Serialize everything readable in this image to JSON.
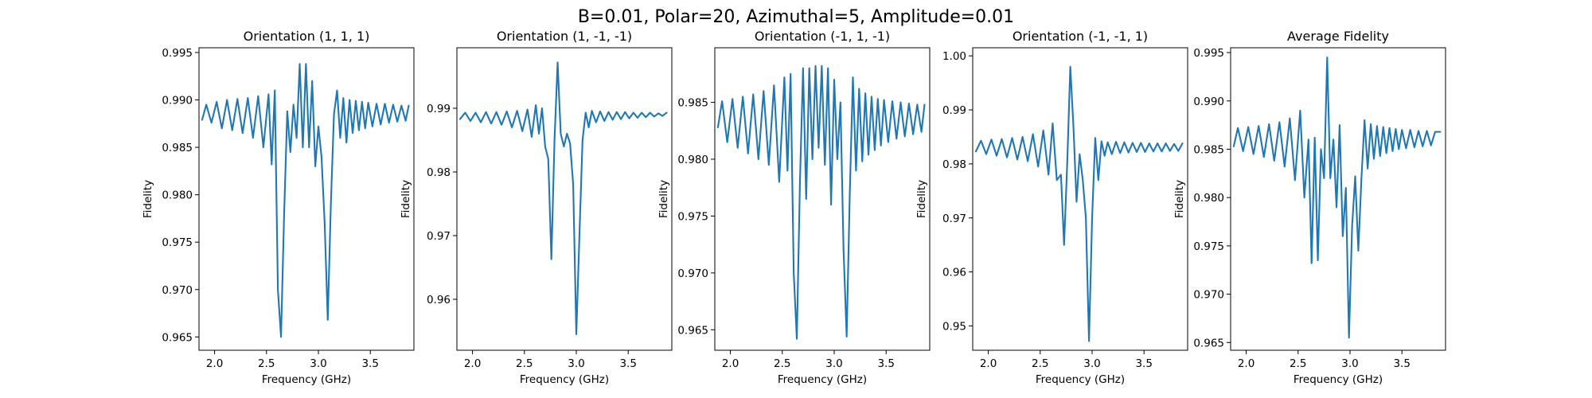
{
  "suptitle": "B=0.01, Polar=20, Azimuthal=5, Amplitude=0.01",
  "colors": {
    "line": "#1f77b4",
    "axes": "#000000",
    "background": "#ffffff"
  },
  "chart_data": [
    {
      "type": "line",
      "title": "Orientation (1, 1, 1)",
      "xlabel": "Frequency (GHz)",
      "ylabel": "Fidelity",
      "xlim": [
        1.85,
        3.92
      ],
      "ylim": [
        0.9636,
        0.9955
      ],
      "xticks": [
        2.0,
        2.5,
        3.0,
        3.5
      ],
      "xtick_labels": [
        "2.0",
        "2.5",
        "3.0",
        "3.5"
      ],
      "yticks": [
        0.965,
        0.97,
        0.975,
        0.98,
        0.985,
        0.99,
        0.995
      ],
      "ytick_labels": [
        "0.965",
        "0.970",
        "0.975",
        "0.980",
        "0.985",
        "0.990",
        "0.995"
      ],
      "grid": false,
      "series": [
        {
          "x": [
            1.88,
            1.92,
            1.97,
            2.02,
            2.07,
            2.12,
            2.17,
            2.22,
            2.27,
            2.32,
            2.37,
            2.42,
            2.47,
            2.52,
            2.55,
            2.58,
            2.61,
            2.64,
            2.67,
            2.7,
            2.73,
            2.76,
            2.79,
            2.82,
            2.85,
            2.88,
            2.91,
            2.94,
            2.97,
            3.0,
            3.03,
            3.06,
            3.09,
            3.12,
            3.15,
            3.18,
            3.21,
            3.24,
            3.27,
            3.3,
            3.33,
            3.36,
            3.39,
            3.42,
            3.45,
            3.48,
            3.52,
            3.56,
            3.6,
            3.64,
            3.68,
            3.72,
            3.76,
            3.8,
            3.84,
            3.87
          ],
          "y": [
            0.9879,
            0.9895,
            0.9876,
            0.9898,
            0.987,
            0.99,
            0.9868,
            0.9901,
            0.9865,
            0.9902,
            0.986,
            0.9904,
            0.985,
            0.9906,
            0.9832,
            0.991,
            0.97,
            0.965,
            0.978,
            0.9888,
            0.9845,
            0.9895,
            0.986,
            0.9938,
            0.985,
            0.9938,
            0.985,
            0.992,
            0.983,
            0.9872,
            0.984,
            0.9771,
            0.9668,
            0.979,
            0.9885,
            0.991,
            0.986,
            0.9902,
            0.9855,
            0.99,
            0.9865,
            0.9899,
            0.9868,
            0.9898,
            0.987,
            0.9897,
            0.9872,
            0.9896,
            0.9874,
            0.9896,
            0.9876,
            0.9895,
            0.9877,
            0.9894,
            0.9878,
            0.9894
          ]
        }
      ]
    },
    {
      "type": "line",
      "title": "Orientation (1, -1, -1)",
      "xlabel": "Frequency (GHz)",
      "ylabel": "Fidelity",
      "xlim": [
        1.85,
        3.92
      ],
      "ylim": [
        0.952,
        0.9995
      ],
      "xticks": [
        2.0,
        2.5,
        3.0,
        3.5
      ],
      "xtick_labels": [
        "2.0",
        "2.5",
        "3.0",
        "3.5"
      ],
      "yticks": [
        0.96,
        0.97,
        0.98,
        0.99
      ],
      "ytick_labels": [
        "0.96",
        "0.97",
        "0.98",
        "0.99"
      ],
      "grid": false,
      "series": [
        {
          "x": [
            1.88,
            1.93,
            1.98,
            2.03,
            2.08,
            2.13,
            2.18,
            2.23,
            2.28,
            2.33,
            2.38,
            2.43,
            2.48,
            2.53,
            2.57,
            2.61,
            2.64,
            2.67,
            2.7,
            2.73,
            2.76,
            2.79,
            2.82,
            2.85,
            2.88,
            2.91,
            2.94,
            2.97,
            3.0,
            3.03,
            3.06,
            3.09,
            3.12,
            3.15,
            3.19,
            3.23,
            3.27,
            3.31,
            3.35,
            3.39,
            3.43,
            3.47,
            3.51,
            3.55,
            3.59,
            3.63,
            3.67,
            3.71,
            3.75,
            3.79,
            3.83,
            3.87
          ],
          "y": [
            0.9883,
            0.9893,
            0.988,
            0.9893,
            0.9878,
            0.9894,
            0.9876,
            0.9894,
            0.9874,
            0.9895,
            0.987,
            0.9896,
            0.9864,
            0.9898,
            0.9855,
            0.9905,
            0.986,
            0.99,
            0.984,
            0.982,
            0.9663,
            0.985,
            0.9972,
            0.986,
            0.984,
            0.986,
            0.9845,
            0.978,
            0.9545,
            0.97,
            0.985,
            0.9893,
            0.987,
            0.9896,
            0.9878,
            0.9895,
            0.988,
            0.9894,
            0.9882,
            0.9894,
            0.9883,
            0.9894,
            0.9884,
            0.9893,
            0.9885,
            0.9893,
            0.9886,
            0.9893,
            0.9887,
            0.9892,
            0.9888,
            0.9893
          ]
        }
      ]
    },
    {
      "type": "line",
      "title": "Orientation (-1, 1, -1)",
      "xlabel": "Frequency (GHz)",
      "ylabel": "Fidelity",
      "xlim": [
        1.85,
        3.92
      ],
      "ylim": [
        0.9632,
        0.9898
      ],
      "xticks": [
        2.0,
        2.5,
        3.0,
        3.5
      ],
      "xtick_labels": [
        "2.0",
        "2.5",
        "3.0",
        "3.5"
      ],
      "yticks": [
        0.965,
        0.97,
        0.975,
        0.98,
        0.985
      ],
      "ytick_labels": [
        "0.965",
        "0.970",
        "0.975",
        "0.980",
        "0.985"
      ],
      "grid": false,
      "series": [
        {
          "x": [
            1.88,
            1.92,
            1.97,
            2.02,
            2.07,
            2.12,
            2.17,
            2.22,
            2.27,
            2.32,
            2.37,
            2.42,
            2.47,
            2.52,
            2.55,
            2.58,
            2.61,
            2.64,
            2.67,
            2.7,
            2.73,
            2.76,
            2.79,
            2.82,
            2.85,
            2.88,
            2.91,
            2.94,
            2.97,
            3.0,
            3.03,
            3.06,
            3.09,
            3.12,
            3.15,
            3.18,
            3.21,
            3.24,
            3.27,
            3.3,
            3.33,
            3.36,
            3.39,
            3.42,
            3.45,
            3.48,
            3.52,
            3.56,
            3.6,
            3.64,
            3.68,
            3.72,
            3.76,
            3.8,
            3.84,
            3.87
          ],
          "y": [
            0.9828,
            0.9851,
            0.9815,
            0.9853,
            0.981,
            0.9855,
            0.9805,
            0.9857,
            0.98,
            0.986,
            0.9795,
            0.9865,
            0.978,
            0.9872,
            0.979,
            0.9875,
            0.97,
            0.9642,
            0.978,
            0.988,
            0.9765,
            0.988,
            0.98,
            0.9882,
            0.981,
            0.9882,
            0.9795,
            0.988,
            0.976,
            0.987,
            0.98,
            0.985,
            0.972,
            0.9644,
            0.977,
            0.9872,
            0.979,
            0.9862,
            0.9798,
            0.9858,
            0.9804,
            0.9855,
            0.9808,
            0.9853,
            0.9812,
            0.9852,
            0.9815,
            0.9851,
            0.9818,
            0.985,
            0.982,
            0.9849,
            0.9822,
            0.9848,
            0.9824,
            0.9848
          ]
        }
      ]
    },
    {
      "type": "line",
      "title": "Orientation (-1, -1, 1)",
      "xlabel": "Frequency (GHz)",
      "ylabel": "Fidelity",
      "xlim": [
        1.85,
        3.92
      ],
      "ylim": [
        0.9455,
        1.0015
      ],
      "xticks": [
        2.0,
        2.5,
        3.0,
        3.5
      ],
      "xtick_labels": [
        "2.0",
        "2.5",
        "3.0",
        "3.5"
      ],
      "yticks": [
        0.95,
        0.96,
        0.97,
        0.98,
        0.99,
        1.0
      ],
      "ytick_labels": [
        "0.95",
        "0.96",
        "0.97",
        "0.98",
        "0.99",
        "1.00"
      ],
      "grid": false,
      "series": [
        {
          "x": [
            1.88,
            1.93,
            1.98,
            2.03,
            2.08,
            2.13,
            2.18,
            2.23,
            2.28,
            2.33,
            2.38,
            2.43,
            2.48,
            2.53,
            2.58,
            2.62,
            2.66,
            2.7,
            2.73,
            2.76,
            2.79,
            2.82,
            2.85,
            2.88,
            2.91,
            2.94,
            2.97,
            3.0,
            3.03,
            3.06,
            3.09,
            3.12,
            3.15,
            3.19,
            3.23,
            3.27,
            3.31,
            3.35,
            3.39,
            3.43,
            3.47,
            3.51,
            3.55,
            3.59,
            3.63,
            3.67,
            3.71,
            3.75,
            3.79,
            3.83,
            3.87
          ],
          "y": [
            0.9823,
            0.9843,
            0.9818,
            0.9845,
            0.9815,
            0.9846,
            0.9812,
            0.9848,
            0.9808,
            0.985,
            0.9805,
            0.9855,
            0.9795,
            0.9862,
            0.978,
            0.9875,
            0.977,
            0.978,
            0.965,
            0.98,
            0.998,
            0.987,
            0.973,
            0.9818,
            0.977,
            0.97,
            0.9472,
            0.97,
            0.9848,
            0.977,
            0.9842,
            0.9815,
            0.984,
            0.9818,
            0.9841,
            0.982,
            0.984,
            0.9821,
            0.9839,
            0.9822,
            0.9839,
            0.9822,
            0.9838,
            0.9823,
            0.9838,
            0.9823,
            0.9838,
            0.9824,
            0.9837,
            0.9824,
            0.9838
          ]
        }
      ]
    },
    {
      "type": "line",
      "title": "Average Fidelity",
      "xlabel": "Frequency (GHz)",
      "ylabel": "Fidelity",
      "xlim": [
        1.85,
        3.92
      ],
      "ylim": [
        0.9642,
        0.9955
      ],
      "xticks": [
        2.0,
        2.5,
        3.0,
        3.5
      ],
      "xtick_labels": [
        "2.0",
        "2.5",
        "3.0",
        "3.5"
      ],
      "yticks": [
        0.965,
        0.97,
        0.975,
        0.98,
        0.985,
        0.99,
        0.995
      ],
      "ytick_labels": [
        "0.965",
        "0.970",
        "0.975",
        "0.980",
        "0.985",
        "0.990",
        "0.995"
      ],
      "grid": false,
      "series": [
        {
          "x": [
            1.88,
            1.92,
            1.97,
            2.02,
            2.07,
            2.12,
            2.17,
            2.22,
            2.27,
            2.32,
            2.37,
            2.42,
            2.47,
            2.52,
            2.56,
            2.6,
            2.63,
            2.66,
            2.69,
            2.72,
            2.75,
            2.78,
            2.81,
            2.84,
            2.87,
            2.9,
            2.93,
            2.96,
            2.99,
            3.02,
            3.05,
            3.08,
            3.11,
            3.14,
            3.17,
            3.2,
            3.23,
            3.26,
            3.29,
            3.32,
            3.35,
            3.38,
            3.41,
            3.44,
            3.47,
            3.5,
            3.54,
            3.58,
            3.62,
            3.66,
            3.7,
            3.74,
            3.78,
            3.82,
            3.87
          ],
          "y": [
            0.9853,
            0.9872,
            0.9848,
            0.9873,
            0.9845,
            0.9874,
            0.9842,
            0.9876,
            0.9838,
            0.9878,
            0.9832,
            0.9882,
            0.9818,
            0.989,
            0.98,
            0.986,
            0.9732,
            0.9862,
            0.9735,
            0.985,
            0.982,
            0.9945,
            0.982,
            0.986,
            0.979,
            0.9875,
            0.976,
            0.981,
            0.9655,
            0.977,
            0.9822,
            0.9745,
            0.982,
            0.988,
            0.983,
            0.9876,
            0.984,
            0.9874,
            0.9843,
            0.9873,
            0.9846,
            0.9872,
            0.9848,
            0.9871,
            0.985,
            0.987,
            0.9851,
            0.987,
            0.9852,
            0.9869,
            0.9853,
            0.9869,
            0.9854,
            0.9868,
            0.9868
          ]
        }
      ]
    }
  ]
}
